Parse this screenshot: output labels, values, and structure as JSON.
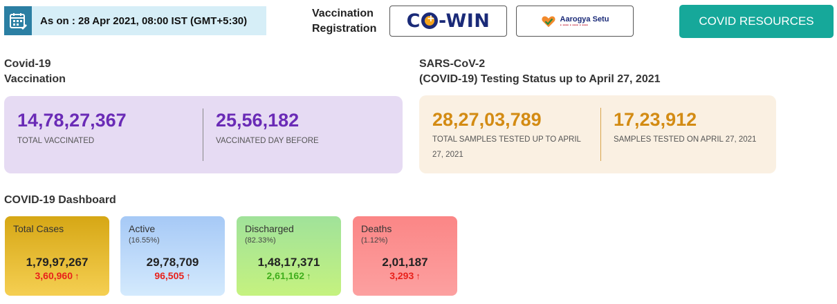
{
  "header": {
    "as_on": "As on : 28 Apr 2021, 08:00 IST (GMT+5:30)",
    "vaccination_registration": [
      "Vaccination",
      "Registration"
    ],
    "cowin_logo": "Co-WIN",
    "aarogya_logo": "Aarogya Setu",
    "covid_resources_label": "COVID RESOURCES",
    "icons": {
      "calendar": "calendar-icon",
      "aarogya_heart": "heart-check-icon"
    },
    "colors": {
      "date_bar_bg": "#d6eef7",
      "calendar_bg": "#2b7fa3",
      "resources_btn": "#16a89a"
    }
  },
  "vaccination": {
    "title": [
      "Covid-19",
      "Vaccination"
    ],
    "total_vaccinated": "14,78,27,367",
    "total_vaccinated_label": "TOTAL VACCINATED",
    "day_before": "25,56,182",
    "day_before_label": "VACCINATED DAY BEFORE",
    "color": "#6a2bb6"
  },
  "testing": {
    "title": [
      "SARS-CoV-2",
      "(COVID-19) Testing Status up to April 27, 2021"
    ],
    "total_samples": "28,27,03,789",
    "total_samples_label": [
      "TOTAL SAMPLES TESTED UP TO APRIL",
      "27, 2021"
    ],
    "samples_day": "17,23,912",
    "samples_day_label": "SAMPLES TESTED ON APRIL 27, 2021",
    "color": "#d38b13"
  },
  "dashboard": {
    "title": "COVID-19 Dashboard",
    "cards": [
      {
        "title": "Total Cases",
        "percent": "",
        "value": "1,79,97,267",
        "delta": "3,60,960",
        "arrow": "↑",
        "delta_color": "#e8211b"
      },
      {
        "title": "Active",
        "percent": "(16.55%)",
        "value": "29,78,709",
        "delta": "96,505",
        "arrow": "↑",
        "delta_color": "#e8211b"
      },
      {
        "title": "Discharged",
        "percent": "(82.33%)",
        "value": "1,48,17,371",
        "delta": "2,61,162",
        "arrow": "↑",
        "delta_color": "#3fae1c"
      },
      {
        "title": "Deaths",
        "percent": "(1.12%)",
        "value": "2,01,187",
        "delta": "3,293",
        "arrow": "↑",
        "delta_color": "#e8211b"
      }
    ]
  }
}
